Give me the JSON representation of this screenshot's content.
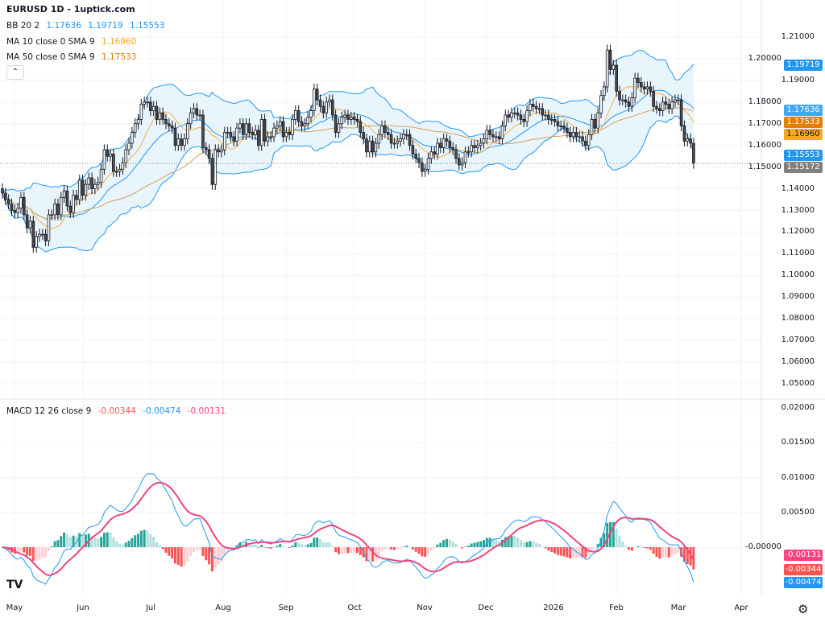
{
  "header": {
    "title": "EURUSD 1D - 1uptick.com"
  },
  "legend": {
    "bb": {
      "label": "BB 20 2",
      "basis": "1.17636",
      "upper": "1.19719",
      "lower": "1.15553"
    },
    "ma10": {
      "label": "MA 10 close 0 SMA 9",
      "value": "1.16960"
    },
    "ma50": {
      "label": "MA 50 close 0 SMA 9",
      "value": "1.17533"
    },
    "macd": {
      "label": "MACD 12 26 close 9",
      "hist": "-0.00344",
      "macd": "-0.00474",
      "signal": "-0.00131"
    },
    "collapse_icon": "chevron-up-icon"
  },
  "price_axis": {
    "ticks": [
      "1.21000",
      "1.20000",
      "1.19000",
      "1.18000",
      "1.17000",
      "1.16000",
      "1.15000",
      "1.14000",
      "1.13000",
      "1.12000",
      "1.11000",
      "1.10000",
      "1.09000",
      "1.08000",
      "1.07000",
      "1.06000",
      "1.05000"
    ],
    "badges": [
      {
        "name": "bb-upper",
        "value": "1.19719",
        "color": "#2196f3",
        "text": "#ffffff"
      },
      {
        "name": "bb-basis",
        "value": "1.17636",
        "color": "#42a5f5",
        "text": "#ffffff"
      },
      {
        "name": "ma50",
        "value": "1.17533",
        "color": "#e67e00",
        "text": "#ffffff"
      },
      {
        "name": "ma10",
        "value": "1.16960",
        "color": "#f9a825",
        "text": "#131722"
      },
      {
        "name": "bb-lower",
        "value": "1.15553",
        "color": "#2196f3",
        "text": "#ffffff"
      },
      {
        "name": "last-price",
        "value": "1.15172",
        "color": "#808080",
        "text": "#ffffff"
      }
    ]
  },
  "macd_axis": {
    "ticks": [
      "0.02000",
      "0.01500",
      "0.01000",
      "0.00500",
      "-0.00000"
    ],
    "badges": [
      {
        "name": "signal",
        "value": "-0.00131",
        "color": "#ff4081",
        "text": "#ffffff"
      },
      {
        "name": "histogram",
        "value": "-0.00344",
        "color": "#ff5252",
        "text": "#ffffff"
      },
      {
        "name": "macd",
        "value": "-0.00474",
        "color": "#2196f3",
        "text": "#ffffff"
      }
    ]
  },
  "time_axis": {
    "labels": [
      "May",
      "Jun",
      "Jul",
      "Aug",
      "Sep",
      "Oct",
      "Nov",
      "Dec",
      "2026",
      "Feb",
      "Mar",
      "Apr"
    ]
  },
  "footer": {
    "logo": "TV",
    "settings_icon": "gear-icon"
  },
  "colors": {
    "up": "#ffffff",
    "down": "#4a4a4a",
    "bb": "#2196f3",
    "bb_fill": "#e3f2fd",
    "ma10": "#f5b041",
    "ma50": "#d4a055",
    "macd": "#2196f3",
    "signal": "#f0447f",
    "hist_up": "#26a69a",
    "hist_up_light": "#b2dfdb",
    "hist_dn": "#ff5252",
    "hist_dn_light": "#ffcdd2"
  },
  "chart_data": {
    "type": "candlestick",
    "symbol": "EURUSD",
    "interval": "1D",
    "ylim": [
      1.05,
      1.21
    ],
    "closes": [
      1.138,
      1.135,
      1.133,
      1.13,
      1.129,
      1.131,
      1.136,
      1.128,
      1.122,
      1.125,
      1.113,
      1.118,
      1.119,
      1.119,
      1.116,
      1.128,
      1.128,
      1.133,
      1.128,
      1.136,
      1.139,
      1.132,
      1.129,
      1.137,
      1.135,
      1.144,
      1.137,
      1.142,
      1.145,
      1.14,
      1.142,
      1.143,
      1.149,
      1.158,
      1.155,
      1.156,
      1.148,
      1.148,
      1.149,
      1.152,
      1.158,
      1.161,
      1.166,
      1.17,
      1.172,
      1.179,
      1.18,
      1.18,
      1.176,
      1.178,
      1.172,
      1.175,
      1.172,
      1.17,
      1.169,
      1.168,
      1.16,
      1.163,
      1.16,
      1.163,
      1.17,
      1.175,
      1.177,
      1.174,
      1.174,
      1.159,
      1.158,
      1.154,
      1.142,
      1.158,
      1.157,
      1.158,
      1.166,
      1.166,
      1.164,
      1.162,
      1.168,
      1.17,
      1.165,
      1.17,
      1.166,
      1.165,
      1.167,
      1.16,
      1.172,
      1.162,
      1.164,
      1.164,
      1.168,
      1.169,
      1.171,
      1.164,
      1.166,
      1.165,
      1.172,
      1.176,
      1.171,
      1.169,
      1.17,
      1.173,
      1.176,
      1.186,
      1.181,
      1.178,
      1.175,
      1.18,
      1.181,
      1.174,
      1.166,
      1.17,
      1.173,
      1.174,
      1.172,
      1.173,
      1.172,
      1.171,
      1.166,
      1.163,
      1.157,
      1.162,
      1.157,
      1.161,
      1.165,
      1.169,
      1.166,
      1.165,
      1.161,
      1.161,
      1.162,
      1.163,
      1.165,
      1.165,
      1.16,
      1.156,
      1.154,
      1.152,
      1.148,
      1.149,
      1.154,
      1.157,
      1.156,
      1.161,
      1.159,
      1.163,
      1.162,
      1.159,
      1.158,
      1.154,
      1.151,
      1.152,
      1.157,
      1.157,
      1.16,
      1.159,
      1.16,
      1.161,
      1.163,
      1.167,
      1.165,
      1.164,
      1.164,
      1.163,
      1.169,
      1.174,
      1.173,
      1.175,
      1.175,
      1.174,
      1.172,
      1.171,
      1.176,
      1.179,
      1.178,
      1.177,
      1.177,
      1.174,
      1.174,
      1.172,
      1.172,
      1.171,
      1.169,
      1.169,
      1.168,
      1.166,
      1.164,
      1.166,
      1.164,
      1.164,
      1.162,
      1.16,
      1.165,
      1.172,
      1.168,
      1.175,
      1.183,
      1.187,
      1.204,
      1.195,
      1.197,
      1.185,
      1.181,
      1.181,
      1.18,
      1.178,
      1.182,
      1.191,
      1.189,
      1.187,
      1.186,
      1.187,
      1.185,
      1.178,
      1.177,
      1.176,
      1.18,
      1.179,
      1.177,
      1.18,
      1.181,
      1.181,
      1.169,
      1.162,
      1.163,
      1.161,
      1.15172
    ],
    "indicators": [
      "BB 20 2",
      "MA 10",
      "MA 50",
      "MACD 12 26 9"
    ],
    "grid": true
  }
}
